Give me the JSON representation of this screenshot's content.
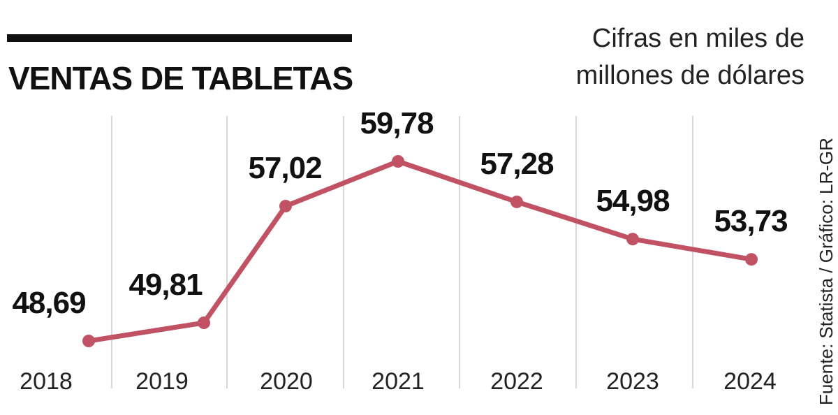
{
  "chart_data": {
    "type": "line",
    "title": "VENTAS DE TABLETAS",
    "subtitle_line1": "Cifras en miles de",
    "subtitle_line2": "millones de dólares",
    "source": "Fuente: Statista / Gráfico: LR-GR",
    "categories": [
      "2018",
      "2019",
      "2020",
      "2021",
      "2022",
      "2023",
      "2024"
    ],
    "values": [
      48.69,
      49.81,
      57.02,
      59.78,
      57.28,
      54.98,
      53.73
    ],
    "value_labels": [
      "48,69",
      "49,81",
      "57,02",
      "59,78",
      "57,28",
      "54,98",
      "53,73"
    ],
    "ylim": [
      48.0,
      60.5
    ],
    "xlabel": "",
    "ylabel": "",
    "grid": "vertical",
    "line_color": "#c05264",
    "grid_color": "#cccccc"
  }
}
